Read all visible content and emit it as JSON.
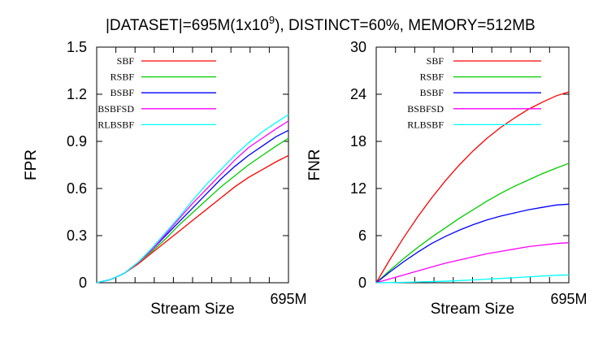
{
  "figure": {
    "title_part1": "|DATASET|=695M(1x10",
    "title_sup": "9",
    "title_part2": "), DISTINCT=60%, MEMORY=512MB"
  },
  "chart_data": [
    {
      "type": "line",
      "xlabel": "Stream Size",
      "ylabel": "FPR",
      "x_tick_labels": [
        "695M"
      ],
      "xlim": [
        0,
        695
      ],
      "ylim": [
        0,
        1.5
      ],
      "y_ticks": [
        "0",
        "0.3",
        "0.6",
        "0.9",
        "1.2",
        "1.5"
      ],
      "grid": false,
      "legend_position": "top-left",
      "x": [
        0,
        50,
        100,
        150,
        200,
        250,
        300,
        350,
        400,
        450,
        500,
        550,
        600,
        650,
        695
      ],
      "series": [
        {
          "name": "SBF",
          "color": "#ff0000",
          "values": [
            0,
            0.02,
            0.06,
            0.12,
            0.19,
            0.26,
            0.33,
            0.4,
            0.47,
            0.54,
            0.61,
            0.67,
            0.72,
            0.77,
            0.81
          ]
        },
        {
          "name": "RSBF",
          "color": "#00cc00",
          "values": [
            0,
            0.02,
            0.06,
            0.13,
            0.2,
            0.28,
            0.37,
            0.45,
            0.53,
            0.61,
            0.68,
            0.75,
            0.81,
            0.87,
            0.92
          ]
        },
        {
          "name": "BSBF",
          "color": "#0000ff",
          "values": [
            0,
            0.02,
            0.06,
            0.13,
            0.21,
            0.3,
            0.39,
            0.48,
            0.57,
            0.66,
            0.74,
            0.81,
            0.87,
            0.93,
            0.97
          ]
        },
        {
          "name": "BSBFSD",
          "color": "#ff00ff",
          "values": [
            0,
            0.02,
            0.06,
            0.13,
            0.21,
            0.31,
            0.41,
            0.51,
            0.6,
            0.69,
            0.78,
            0.86,
            0.92,
            0.98,
            1.03
          ]
        },
        {
          "name": "RLBSBF",
          "color": "#00ffff",
          "values": [
            0,
            0.02,
            0.06,
            0.13,
            0.22,
            0.32,
            0.42,
            0.53,
            0.63,
            0.72,
            0.81,
            0.89,
            0.96,
            1.02,
            1.07
          ]
        }
      ]
    },
    {
      "type": "line",
      "xlabel": "Stream Size",
      "ylabel": "FNR",
      "x_tick_labels": [
        "695M"
      ],
      "xlim": [
        0,
        695
      ],
      "ylim": [
        0,
        30
      ],
      "y_ticks": [
        "0",
        "6",
        "12",
        "18",
        "24",
        "30"
      ],
      "grid": false,
      "legend_position": "top-right",
      "x": [
        0,
        50,
        100,
        150,
        200,
        250,
        300,
        350,
        400,
        450,
        500,
        550,
        600,
        650,
        695
      ],
      "series": [
        {
          "name": "SBF",
          "color": "#ff0000",
          "values": [
            0,
            3.0,
            5.8,
            8.4,
            10.8,
            13.0,
            15.0,
            16.8,
            18.4,
            19.8,
            21.0,
            22.1,
            23.0,
            23.8,
            24.3
          ]
        },
        {
          "name": "RSBF",
          "color": "#00cc00",
          "values": [
            0,
            1.6,
            3.1,
            4.5,
            5.8,
            7.0,
            8.2,
            9.3,
            10.4,
            11.4,
            12.3,
            13.1,
            13.9,
            14.6,
            15.2
          ]
        },
        {
          "name": "BSBF",
          "color": "#0000ff",
          "values": [
            0,
            1.4,
            2.7,
            3.9,
            5.0,
            5.9,
            6.7,
            7.4,
            8.0,
            8.5,
            8.9,
            9.3,
            9.6,
            9.9,
            10.0
          ]
        },
        {
          "name": "BSBFSD",
          "color": "#ff00ff",
          "values": [
            0,
            0.5,
            1.0,
            1.5,
            2.0,
            2.5,
            2.9,
            3.3,
            3.7,
            4.0,
            4.3,
            4.6,
            4.8,
            5.0,
            5.1
          ]
        },
        {
          "name": "RLBSBF",
          "color": "#00ffff",
          "values": [
            0,
            0.02,
            0.05,
            0.1,
            0.15,
            0.2,
            0.28,
            0.36,
            0.45,
            0.55,
            0.65,
            0.75,
            0.85,
            0.95,
            1.0
          ]
        }
      ]
    }
  ]
}
